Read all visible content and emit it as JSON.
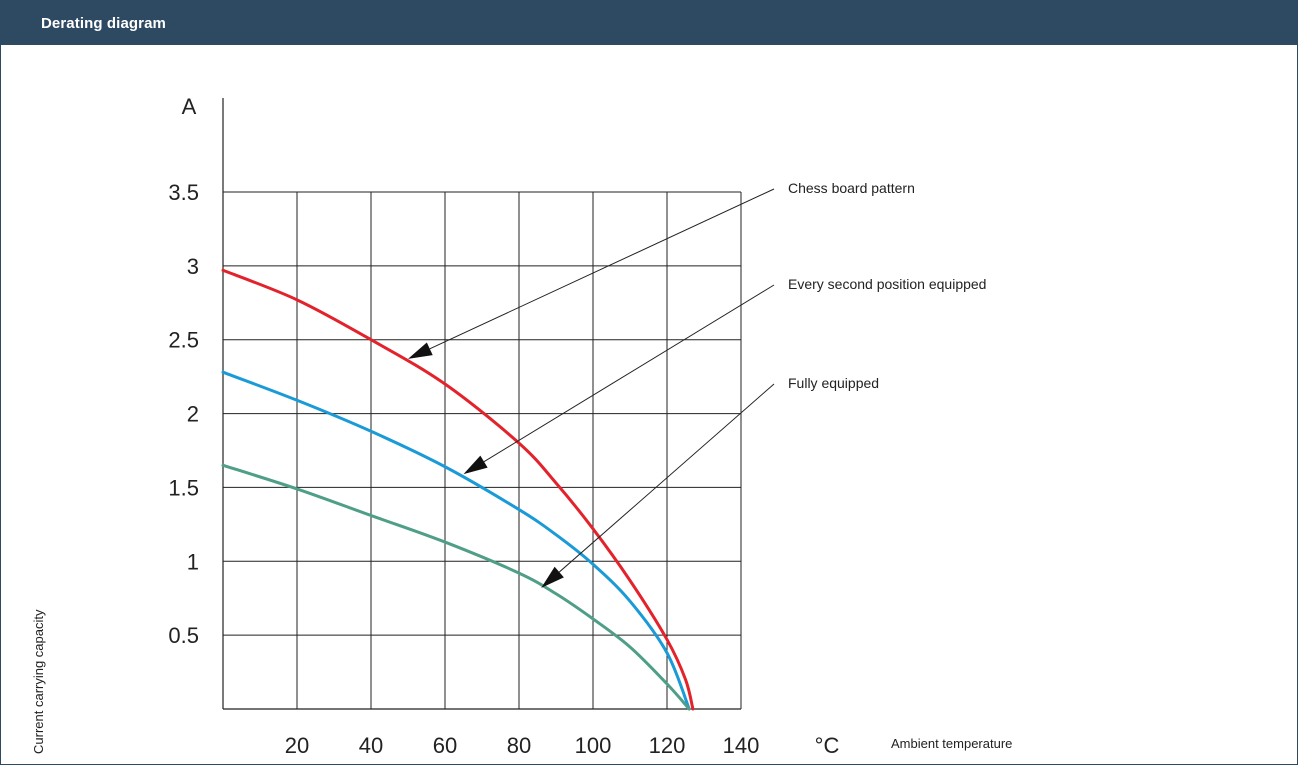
{
  "header": {
    "title": "Derating diagram"
  },
  "chart_data": {
    "type": "line",
    "title": "",
    "xlabel": "Ambient temperature",
    "ylabel": "Current carrying capacity",
    "x_unit": "°C",
    "y_unit": "A",
    "xlim": [
      0,
      140
    ],
    "ylim": [
      0,
      3.5
    ],
    "x_ticks": [
      20,
      40,
      60,
      80,
      100,
      120,
      140
    ],
    "y_ticks": [
      0.5,
      1,
      1.5,
      2,
      2.5,
      3,
      3.5
    ],
    "grid": true,
    "series": [
      {
        "name": "Chess board pattern",
        "color": "#e3232c",
        "x": [
          0,
          20,
          40,
          60,
          80,
          90,
          100,
          110,
          120,
          125,
          127
        ],
        "y": [
          2.97,
          2.77,
          2.5,
          2.2,
          1.8,
          1.53,
          1.22,
          0.87,
          0.47,
          0.2,
          0
        ]
      },
      {
        "name": "Every second position equipped",
        "color": "#1a9ad6",
        "x": [
          0,
          20,
          40,
          60,
          80,
          90,
          100,
          110,
          120,
          126
        ],
        "y": [
          2.28,
          2.09,
          1.88,
          1.64,
          1.35,
          1.18,
          0.98,
          0.73,
          0.38,
          0
        ]
      },
      {
        "name": "Fully equipped",
        "color": "#4e9e88",
        "x": [
          0,
          20,
          40,
          60,
          80,
          90,
          100,
          110,
          120,
          126
        ],
        "y": [
          1.65,
          1.49,
          1.31,
          1.13,
          0.92,
          0.78,
          0.61,
          0.42,
          0.17,
          0
        ]
      }
    ],
    "annotations": [
      {
        "text": "Chess board pattern",
        "series": 0,
        "target": [
          50,
          2.37
        ]
      },
      {
        "text": "Every second position equipped",
        "series": 1,
        "target": [
          65,
          1.59
        ]
      },
      {
        "text": "Fully equipped",
        "series": 2,
        "target": [
          86,
          0.82
        ]
      }
    ]
  }
}
